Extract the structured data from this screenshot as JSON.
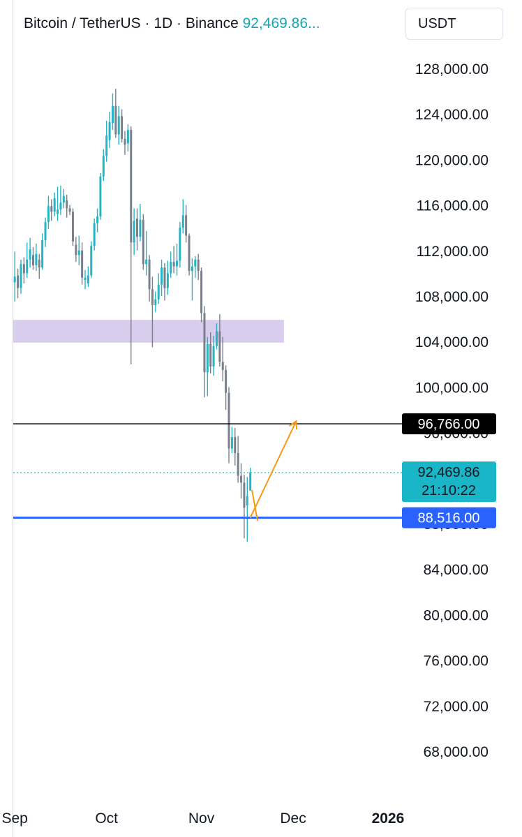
{
  "header": {
    "symbol": "Bitcoin / TetherUS · 1D · Binance",
    "last_price": "92,469.86..."
  },
  "currency_button": "USDT",
  "colors": {
    "up": "#26b4c4",
    "down": "#7a7f8c",
    "zone": "#d9cdee",
    "support": "#2962ff",
    "resistance": "#000000",
    "arrow": "#f59a11",
    "last_price_tag": "#1ab5c6"
  },
  "chart_data": {
    "type": "candlestick",
    "symbol": "Bitcoin / TetherUS",
    "interval": "1D",
    "exchange": "Binance",
    "ylim": [
      66000,
      130000
    ],
    "y_ticks": [
      "128,000.00",
      "124,000.00",
      "120,000.00",
      "116,000.00",
      "112,000.00",
      "108,000.00",
      "104,000.00",
      "100,000.00",
      "84,000.00",
      "80,000.00",
      "76,000.00",
      "72,000.00",
      "68,000.00"
    ],
    "y_tick_values": [
      128000,
      124000,
      120000,
      116000,
      112000,
      108000,
      104000,
      100000,
      84000,
      80000,
      76000,
      72000,
      68000
    ],
    "hidden_ticks": [
      "96,000.00",
      "88,000.00"
    ],
    "hidden_tick_values": [
      96000,
      88000
    ],
    "x_labels": [
      {
        "label": "Sep",
        "day": 0
      },
      {
        "label": "Oct",
        "day": 30
      },
      {
        "label": "Nov",
        "day": 61
      },
      {
        "label": "Dec",
        "day": 91
      },
      {
        "label": "2026",
        "day": 122,
        "bold": true
      }
    ],
    "candles": [
      [
        0,
        109200,
        109700,
        111900,
        107500
      ],
      [
        1,
        109800,
        108700,
        110400,
        107800
      ],
      [
        2,
        108700,
        110800,
        111200,
        108200
      ],
      [
        3,
        110800,
        110000,
        111400,
        109100
      ],
      [
        4,
        110000,
        111200,
        112700,
        109600
      ],
      [
        5,
        111200,
        112100,
        113100,
        110500
      ],
      [
        6,
        111600,
        110700,
        112300,
        110300
      ],
      [
        7,
        110700,
        111700,
        112600,
        110200
      ],
      [
        8,
        111200,
        110500,
        111700,
        109500
      ],
      [
        9,
        110500,
        112900,
        113500,
        110300
      ],
      [
        10,
        112900,
        114500,
        114900,
        112300
      ],
      [
        11,
        114500,
        115900,
        116800,
        113900
      ],
      [
        12,
        115900,
        115400,
        116500,
        114600
      ],
      [
        13,
        115400,
        116600,
        117100,
        115000
      ],
      [
        14,
        115200,
        115600,
        117600,
        114600
      ],
      [
        15,
        115600,
        116200,
        117700,
        115100
      ],
      [
        16,
        116200,
        116800,
        117400,
        115700
      ],
      [
        17,
        116400,
        115700,
        116900,
        114900
      ],
      [
        18,
        115700,
        115400,
        116000,
        115100
      ],
      [
        19,
        115400,
        112800,
        115700,
        112400
      ],
      [
        20,
        112500,
        111600,
        113200,
        111000
      ],
      [
        21,
        111600,
        112000,
        113300,
        110700
      ],
      [
        22,
        112000,
        109600,
        112700,
        109000
      ],
      [
        23,
        109400,
        109600,
        110300,
        108600
      ],
      [
        24,
        109100,
        109800,
        110600,
        108800
      ],
      [
        25,
        109800,
        112400,
        112800,
        109600
      ],
      [
        26,
        112400,
        114400,
        114800,
        112000
      ],
      [
        27,
        114400,
        115000,
        115700,
        113600
      ],
      [
        28,
        115000,
        118500,
        118800,
        114700
      ],
      [
        29,
        118500,
        120300,
        120900,
        118100
      ],
      [
        30,
        120300,
        122100,
        123400,
        119800
      ],
      [
        31,
        121700,
        123300,
        124200,
        121000
      ],
      [
        32,
        123200,
        124700,
        125800,
        122600
      ],
      [
        33,
        124700,
        122200,
        126200,
        121900
      ],
      [
        34,
        122200,
        123800,
        124700,
        121300
      ],
      [
        35,
        123800,
        121800,
        124400,
        121500
      ],
      [
        36,
        121800,
        121300,
        122500,
        120400
      ],
      [
        37,
        121400,
        122600,
        123100,
        120700
      ],
      [
        38,
        122600,
        112700,
        122900,
        102000
      ],
      [
        39,
        112700,
        114600,
        115700,
        111600
      ],
      [
        40,
        114800,
        113200,
        115700,
        112000
      ],
      [
        41,
        113200,
        114700,
        116100,
        112800
      ],
      [
        42,
        114700,
        110800,
        115200,
        110300
      ],
      [
        43,
        110800,
        111200,
        113700,
        109800
      ],
      [
        44,
        111200,
        108600,
        111600,
        107500
      ],
      [
        45,
        108600,
        107200,
        109700,
        103500
      ],
      [
        46,
        107200,
        107700,
        108400,
        106600
      ],
      [
        47,
        107700,
        109000,
        110000,
        107300
      ],
      [
        48,
        109000,
        110500,
        111200,
        108000
      ],
      [
        49,
        110500,
        108700,
        110900,
        107600
      ],
      [
        50,
        108700,
        110000,
        111100,
        108100
      ],
      [
        51,
        110000,
        111000,
        111900,
        109600
      ],
      [
        52,
        111000,
        110600,
        112400,
        110000
      ],
      [
        53,
        110600,
        111100,
        112600,
        109800
      ],
      [
        54,
        111100,
        114000,
        114500,
        110500
      ],
      [
        55,
        114000,
        115100,
        116500,
        113500
      ],
      [
        56,
        115100,
        113300,
        116000,
        112700
      ],
      [
        57,
        113300,
        110200,
        113500,
        109800
      ],
      [
        58,
        110200,
        110600,
        111300,
        107600
      ],
      [
        59,
        110600,
        111200,
        111500,
        109600
      ],
      [
        60,
        111200,
        110200,
        111700,
        109400
      ],
      [
        61,
        110200,
        106500,
        110500,
        105700
      ],
      [
        62,
        106500,
        101300,
        107100,
        99100
      ],
      [
        63,
        101300,
        103800,
        104400,
        99200
      ],
      [
        64,
        103800,
        101800,
        104800,
        101200
      ],
      [
        65,
        101800,
        103600,
        104500,
        101000
      ],
      [
        66,
        103600,
        104900,
        105600,
        103300
      ],
      [
        67,
        104900,
        102200,
        106400,
        101800
      ],
      [
        68,
        102200,
        101500,
        104400,
        100500
      ],
      [
        69,
        101500,
        99500,
        101900,
        98000
      ],
      [
        70,
        99500,
        94600,
        100000,
        93300
      ],
      [
        71,
        94600,
        95600,
        96500,
        94200
      ],
      [
        72,
        95600,
        94200,
        96400,
        93100
      ],
      [
        73,
        94200,
        92200,
        95700,
        91600
      ],
      [
        74,
        92200,
        91600,
        93300,
        90200
      ],
      [
        75,
        91600,
        89400,
        92300,
        86700
      ],
      [
        76,
        89600,
        90400,
        92100,
        86400
      ],
      [
        77,
        90900,
        92500,
        92900,
        91300
      ]
    ],
    "horizontal_levels": [
      {
        "label": "96,766.00",
        "value": 96766,
        "style": "solid",
        "color": "#000000"
      },
      {
        "label": "88,516.00",
        "value": 88516,
        "style": "solid-thick",
        "color": "#2962ff"
      }
    ],
    "last_price": {
      "label": "92,469.86",
      "value": 92469.86,
      "countdown": "21:10:22"
    },
    "zone": {
      "from_value": 103900,
      "to_value": 105900,
      "from_day": 0,
      "to_day": 88
    },
    "projection_arrow": {
      "points": [
        [
          77,
          88516
        ],
        [
          92,
          97000
        ]
      ]
    }
  }
}
